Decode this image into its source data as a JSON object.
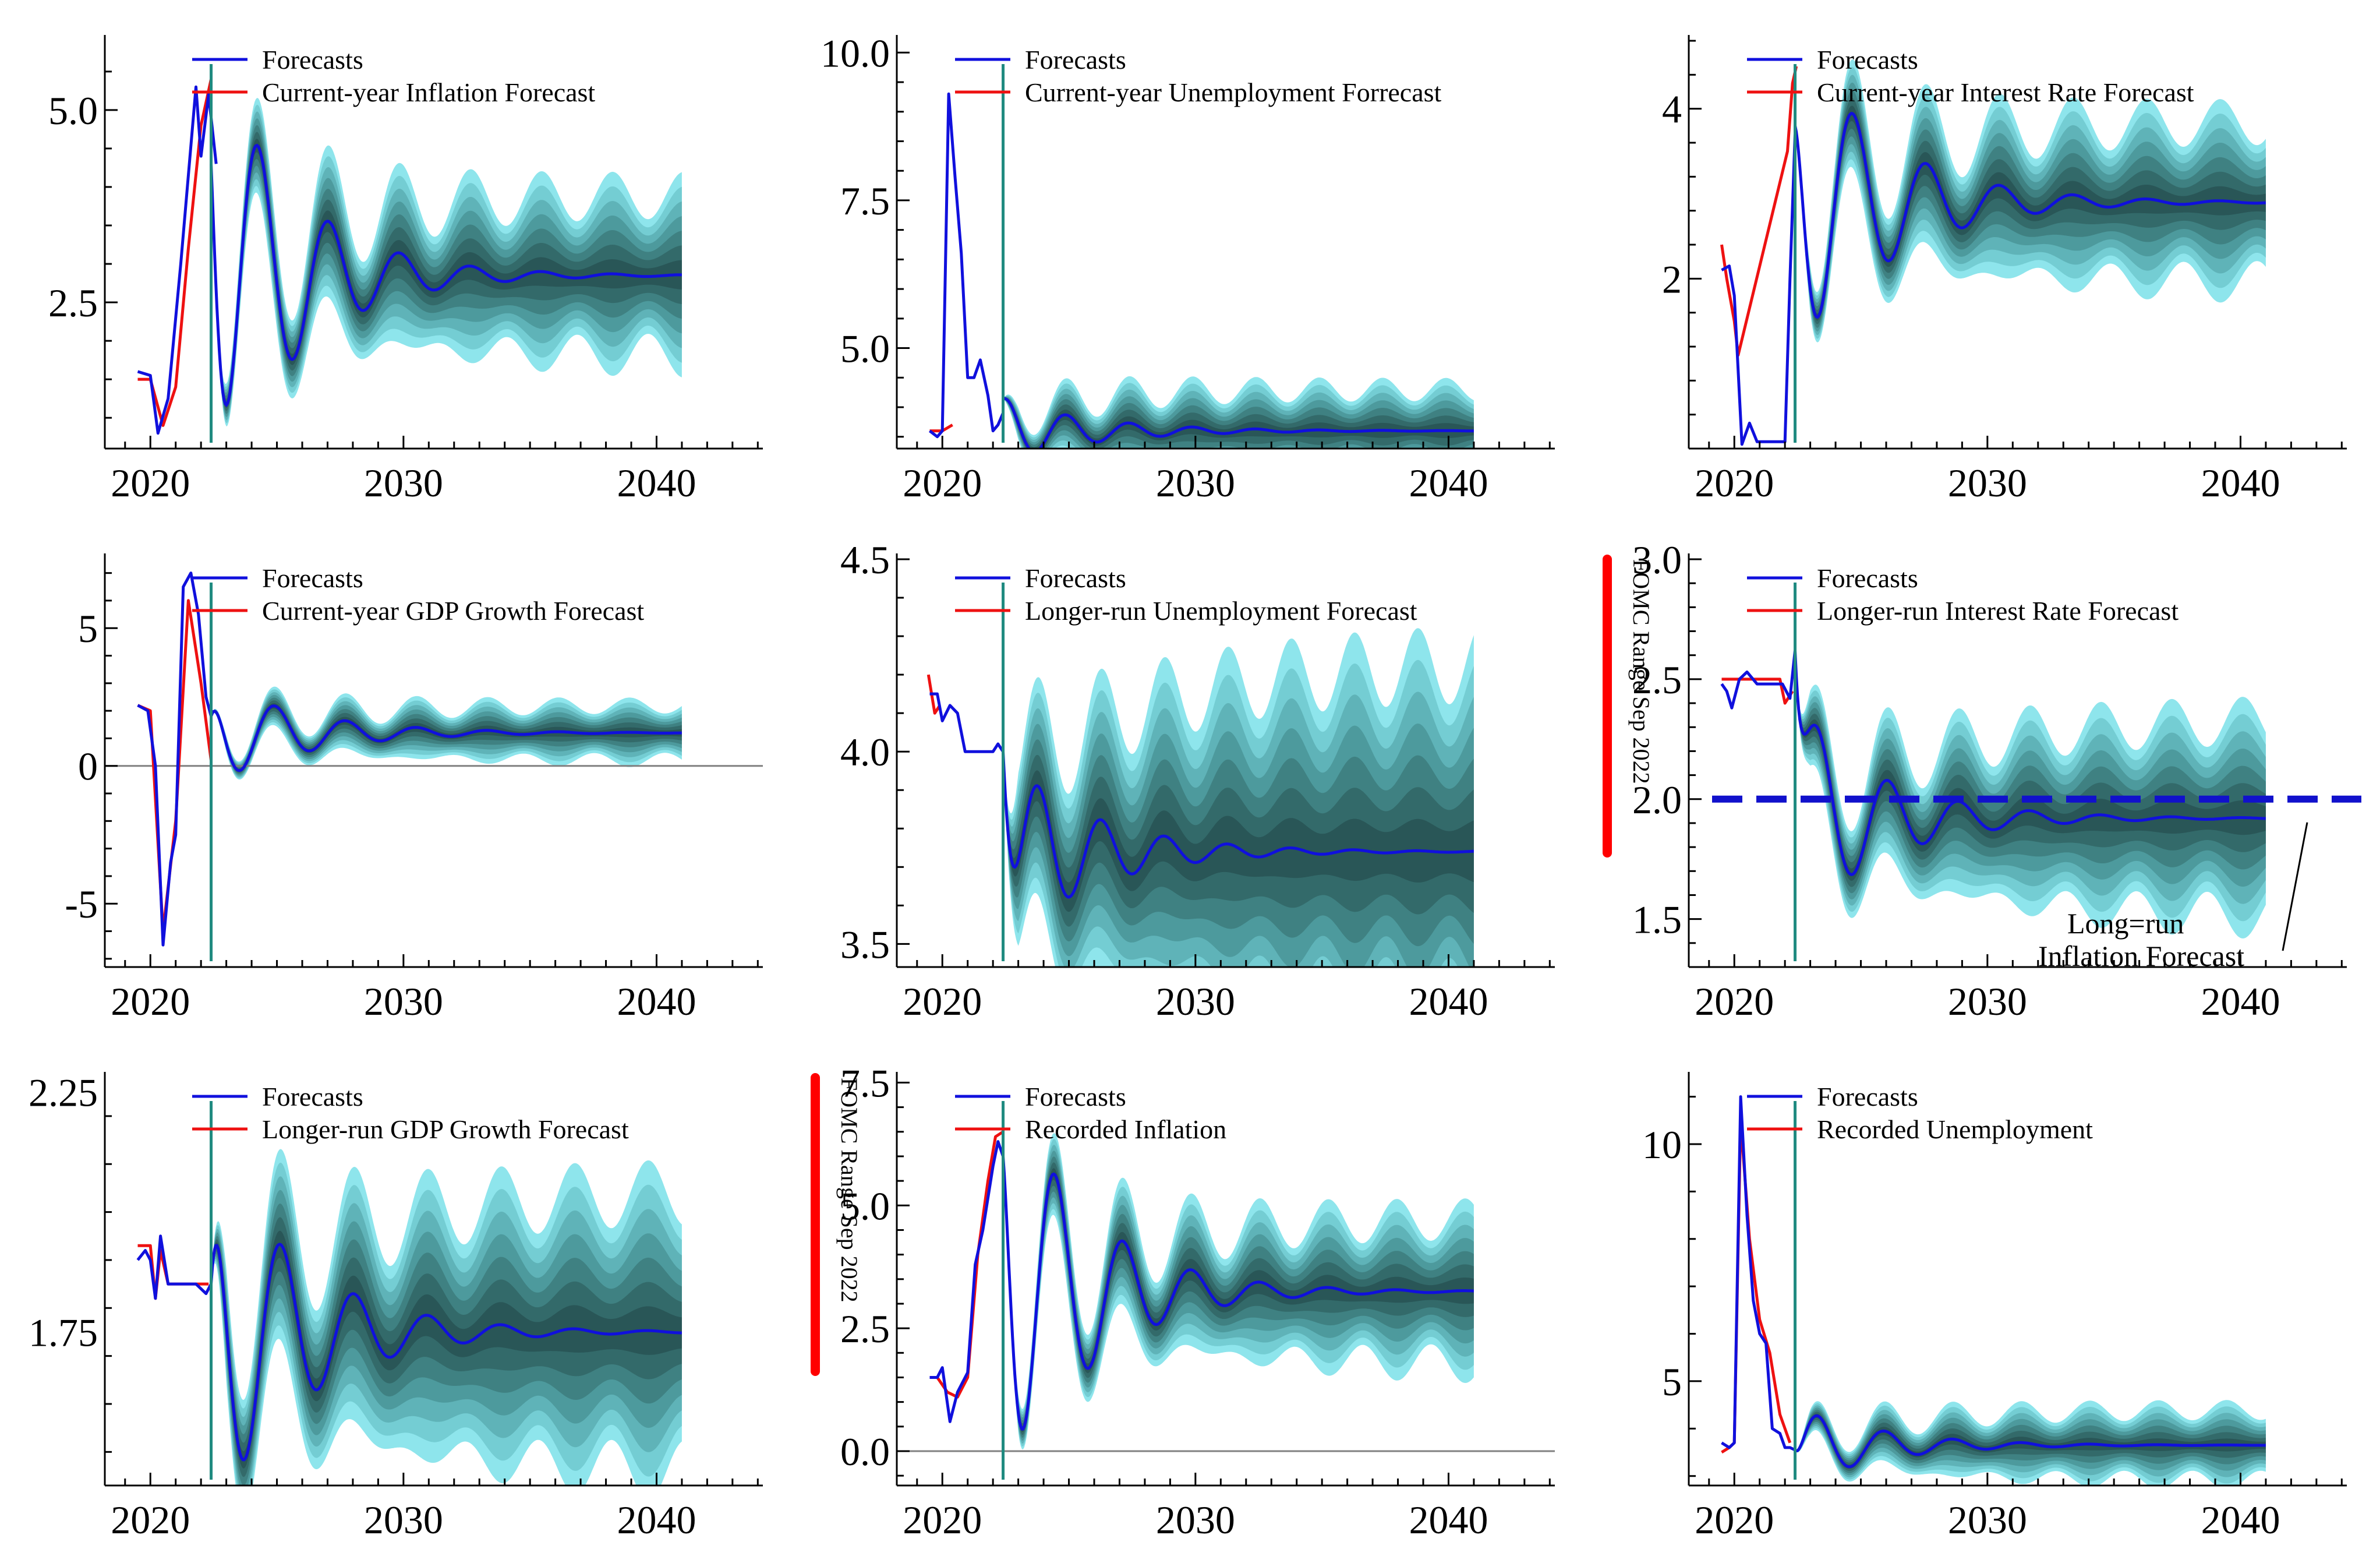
{
  "figure": {
    "x_ticks": [
      2020,
      2030,
      2040
    ],
    "x_tick_labels": [
      "2020",
      "2030",
      "2040"
    ],
    "fan_palette": [
      "#8ee5ec",
      "#74cdd3",
      "#5fb3b8",
      "#4d9a9d",
      "#3f8182",
      "#336a6a",
      "#295657"
    ],
    "colors": {
      "forecast": "#1010dd",
      "recorded": "#ee1111",
      "vline": "#1f8a80",
      "fomc": "#ff0000",
      "zero": "#808080"
    },
    "fomc_label": "FOMC Range Sep 2022"
  },
  "chart_data": [
    {
      "id": "inflation-current",
      "type": "line",
      "title": "",
      "x_range": [
        2018.2,
        2044.2
      ],
      "ylim": [
        0.6,
        5.9
      ],
      "y_ticks": [
        2.5,
        5.0
      ],
      "y_tick_labels": [
        "2.5",
        "5.0"
      ],
      "vline_x": 2022.4,
      "legend": [
        "Forecasts",
        "Current-year Inflation Forecast"
      ],
      "series": [
        {
          "name": "Forecasts",
          "x": [
            2019.5,
            2020.0,
            2020.3,
            2020.7,
            2021.2,
            2021.8,
            2022.0,
            2022.3,
            2022.6
          ],
          "values": [
            1.6,
            1.55,
            0.8,
            1.25,
            3.0,
            5.3,
            4.4,
            5.2,
            4.3
          ]
        },
        {
          "name": "Current-year Inflation Forecast",
          "x": [
            2019.5,
            2020.0,
            2020.5,
            2021.0,
            2021.5,
            2022.0,
            2022.4
          ],
          "values": [
            1.5,
            1.5,
            0.9,
            1.4,
            3.2,
            4.8,
            5.4
          ]
        }
      ],
      "forecast_path": {
        "start": 2022.4,
        "end": 2041.0,
        "start_value": 4.3,
        "mean": 2.85,
        "amplitude": 3.0,
        "period": 2.8,
        "decay": 3.2,
        "phase": 2.1,
        "band_base": 0.2,
        "band_growth": 0.85,
        "band_decay": 4.0
      }
    },
    {
      "id": "unemployment-current",
      "type": "line",
      "title": "",
      "x_range": [
        2018.2,
        2044.2
      ],
      "ylim": [
        3.3,
        10.2
      ],
      "y_ticks": [
        5.0,
        7.5,
        10.0
      ],
      "y_tick_labels": [
        "5.0",
        "7.5",
        "10.0"
      ],
      "vline_x": 2022.4,
      "legend": [
        "Forecasts",
        "Current-year Unemployment Forrecast"
      ],
      "series": [
        {
          "name": "Forecasts",
          "x": [
            2019.5,
            2019.8,
            2020.0,
            2020.25,
            2020.5,
            2020.75,
            2021.0,
            2021.25,
            2021.5,
            2021.8,
            2022.0,
            2022.2,
            2022.4
          ],
          "values": [
            3.6,
            3.5,
            3.6,
            9.3,
            7.9,
            6.6,
            4.5,
            4.5,
            4.8,
            4.2,
            3.6,
            3.7,
            3.9
          ]
        },
        {
          "name": "Current-year Unemployment Forrecast",
          "x": [
            2019.5,
            2020.0,
            2020.4
          ],
          "values": [
            3.6,
            3.6,
            3.7
          ]
        }
      ],
      "forecast_path": {
        "start": 2022.4,
        "end": 2041.0,
        "start_value": 4.15,
        "mean": 3.6,
        "amplitude": 0.55,
        "period": 2.5,
        "decay": 3.5,
        "phase": 0.0,
        "band_base": 0.15,
        "band_growth": 0.55,
        "band_decay": 2.5
      }
    },
    {
      "id": "interest-current",
      "type": "line",
      "title": "",
      "x_range": [
        2018.2,
        2044.2
      ],
      "ylim": [
        0.0,
        4.8
      ],
      "y_ticks": [
        2,
        4
      ],
      "y_tick_labels": [
        "2",
        "4"
      ],
      "vline_x": 2022.4,
      "legend": [
        "Forecasts",
        "Current-year Interest Rate Forecast"
      ],
      "series": [
        {
          "name": "Forecasts",
          "x": [
            2019.5,
            2019.8,
            2020.0,
            2020.3,
            2020.6,
            2020.9,
            2021.2,
            2021.6,
            2022.0,
            2022.2,
            2022.4
          ],
          "values": [
            2.1,
            2.15,
            1.8,
            0.05,
            0.3,
            0.08,
            0.08,
            0.08,
            0.08,
            2.0,
            3.7
          ]
        },
        {
          "name": "Current-year Interest Rate Forecast",
          "x": [
            2019.5,
            2019.7,
            2020.0,
            2020.15,
            2022.1,
            2022.3,
            2022.45
          ],
          "values": [
            2.4,
            2.0,
            1.5,
            1.1,
            3.5,
            4.3,
            4.5
          ]
        }
      ],
      "forecast_path": {
        "start": 2022.4,
        "end": 2041.0,
        "start_value": 3.8,
        "mean": 2.9,
        "amplitude": 2.0,
        "period": 2.9,
        "decay": 3.5,
        "phase": 1.3,
        "band_base": 0.2,
        "band_growth": 0.75,
        "band_decay": 4.0
      }
    },
    {
      "id": "gdp-current",
      "type": "line",
      "title": "",
      "x_range": [
        2018.2,
        2044.2
      ],
      "ylim": [
        -7.3,
        7.5
      ],
      "y_ticks": [
        -5,
        0,
        5
      ],
      "y_tick_labels": [
        "-5",
        "0",
        "5"
      ],
      "vline_x": 2022.4,
      "zero_line": true,
      "legend": [
        "Forecasts",
        "Current-year GDP Growth Forecast"
      ],
      "series": [
        {
          "name": "Forecasts",
          "x": [
            2019.5,
            2019.9,
            2020.2,
            2020.5,
            2020.8,
            2021.0,
            2021.3,
            2021.6,
            2021.9,
            2022.2,
            2022.4
          ],
          "values": [
            2.2,
            2.0,
            0.0,
            -6.5,
            -3.5,
            -2.5,
            6.5,
            7.0,
            5.5,
            2.5,
            1.8
          ]
        },
        {
          "name": "Current-year GDP Growth Forecast",
          "x": [
            2019.5,
            2020.0,
            2020.5,
            2021.0,
            2021.5,
            2022.0,
            2022.4
          ],
          "values": [
            2.2,
            2.0,
            -6.0,
            -2.0,
            6.0,
            3.0,
            0.2
          ]
        }
      ],
      "forecast_path": {
        "start": 2022.4,
        "end": 2041.0,
        "start_value": 1.8,
        "mean": 1.2,
        "amplitude": 2.0,
        "period": 2.8,
        "decay": 3.5,
        "phase": 0.6,
        "band_base": 0.2,
        "band_growth": 0.8,
        "band_decay": 4.0
      }
    },
    {
      "id": "unemployment-longrun",
      "type": "line",
      "title": "",
      "x_range": [
        2018.2,
        2044.2
      ],
      "ylim": [
        3.44,
        4.5
      ],
      "y_ticks": [
        3.5,
        4.0,
        4.5
      ],
      "y_tick_labels": [
        "3.5",
        "4.0",
        "4.5"
      ],
      "vline_x": 2022.4,
      "fomc_range": true,
      "legend": [
        "Forecasts",
        "Longer-run Unemployment Forecast"
      ],
      "series": [
        {
          "name": "Forecasts",
          "x": [
            2019.5,
            2019.8,
            2020.0,
            2020.3,
            2020.6,
            2020.9,
            2021.2,
            2021.6,
            2022.0,
            2022.2,
            2022.4
          ],
          "values": [
            4.15,
            4.15,
            4.08,
            4.12,
            4.1,
            4.0,
            4.0,
            4.0,
            4.0,
            4.02,
            4.0
          ]
        },
        {
          "name": "Longer-run Unemployment Forecast",
          "x": [
            2019.45,
            2019.7,
            2019.9
          ],
          "values": [
            4.2,
            4.1,
            4.12
          ]
        }
      ],
      "forecast_path": {
        "start": 2022.4,
        "end": 2041.0,
        "start_value": 4.0,
        "mean": 3.74,
        "amplitude": 0.25,
        "period": 2.5,
        "decay": 3.5,
        "phase": 2.8,
        "band_base": 0.2,
        "band_growth": 0.3,
        "band_decay": 6.0
      }
    },
    {
      "id": "interest-longrun",
      "type": "line",
      "title": "",
      "x_range": [
        2018.2,
        2044.2
      ],
      "ylim": [
        1.3,
        3.0
      ],
      "y_ticks": [
        1.5,
        2.0,
        2.5,
        3.0
      ],
      "y_tick_labels": [
        "1.5",
        "2.0",
        "2.5",
        "3.0"
      ],
      "vline_x": 2022.4,
      "fomc_range": true,
      "reference_line": {
        "value": 2.0,
        "label_lines": [
          "Long=run",
          "Inflation Forecast"
        ]
      },
      "legend": [
        "Forecasts",
        "Longer-run Interest Rate Forecast"
      ],
      "series": [
        {
          "name": "Forecasts",
          "x": [
            2019.5,
            2019.7,
            2019.9,
            2020.2,
            2020.5,
            2020.9,
            2021.4,
            2021.9,
            2022.2,
            2022.4
          ],
          "values": [
            2.48,
            2.45,
            2.38,
            2.5,
            2.53,
            2.48,
            2.48,
            2.48,
            2.42,
            2.62
          ]
        },
        {
          "name": "Longer-run Interest Rate Forecast",
          "x": [
            2019.5,
            2021.8,
            2022.0,
            2022.3
          ],
          "values": [
            2.5,
            2.5,
            2.4,
            2.45
          ]
        }
      ],
      "forecast_path": {
        "start": 2022.4,
        "end": 2041.0,
        "start_value": 2.62,
        "mean": 1.92,
        "amplitude": 0.45,
        "period": 2.8,
        "decay": 3.5,
        "phase": 4.3,
        "band_base": 0.12,
        "band_growth": 0.3,
        "band_decay": 6.0
      }
    },
    {
      "id": "gdp-longrun",
      "type": "line",
      "title": "",
      "x_range": [
        2018.2,
        2044.2
      ],
      "ylim": [
        1.43,
        2.28
      ],
      "y_ticks": [
        1.75,
        2.25
      ],
      "y_tick_labels": [
        "1.75",
        "2.25"
      ],
      "vline_x": 2022.4,
      "fomc_range": true,
      "legend": [
        "Forecasts",
        "Longer-run GDP Growth  Forecast"
      ],
      "series": [
        {
          "name": "Forecasts",
          "x": [
            2019.5,
            2019.8,
            2020.0,
            2020.2,
            2020.4,
            2020.7,
            2021.2,
            2021.8,
            2022.2,
            2022.4
          ],
          "values": [
            1.9,
            1.92,
            1.9,
            1.82,
            1.95,
            1.85,
            1.85,
            1.85,
            1.83,
            1.85
          ]
        },
        {
          "name": "Longer-run GDP Growth  Forecast",
          "x": [
            2019.5,
            2020.0,
            2020.2,
            2020.4,
            2020.7,
            2022.3
          ],
          "values": [
            1.93,
            1.93,
            1.82,
            1.92,
            1.85,
            1.85
          ]
        }
      ],
      "forecast_path": {
        "start": 2022.4,
        "end": 2041.0,
        "start_value": 1.85,
        "mean": 1.75,
        "amplitude": 0.4,
        "period": 2.9,
        "decay": 3.5,
        "phase": 0.28,
        "band_base": 0.1,
        "band_growth": 0.2,
        "band_decay": 6.0
      }
    },
    {
      "id": "inflation-recorded",
      "type": "line",
      "title": "",
      "x_range": [
        2018.2,
        2044.2
      ],
      "ylim": [
        -0.7,
        7.6
      ],
      "y_ticks": [
        0.0,
        2.5,
        5.0,
        7.5
      ],
      "y_tick_labels": [
        "0.0",
        "2.5",
        "5.0",
        "7.5"
      ],
      "vline_x": 2022.4,
      "zero_line": true,
      "legend": [
        "Forecasts",
        "Recorded Inflation"
      ],
      "series": [
        {
          "name": "Forecasts",
          "x": [
            2019.5,
            2019.8,
            2020.0,
            2020.3,
            2020.6,
            2021.0,
            2021.3,
            2021.6,
            2022.0,
            2022.2,
            2022.4
          ],
          "values": [
            1.5,
            1.5,
            1.7,
            0.6,
            1.2,
            1.6,
            3.8,
            4.5,
            5.8,
            6.3,
            6.0
          ]
        },
        {
          "name": "Recorded Inflation",
          "x": [
            2019.5,
            2019.8,
            2020.2,
            2020.6,
            2021.0,
            2021.4,
            2021.8,
            2022.1,
            2022.4
          ],
          "values": [
            1.5,
            1.5,
            1.2,
            1.1,
            1.5,
            4.0,
            5.5,
            6.4,
            6.5
          ]
        }
      ],
      "forecast_path": {
        "start": 2022.4,
        "end": 2041.0,
        "start_value": 6.0,
        "mean": 3.25,
        "amplitude": 4.5,
        "period": 2.7,
        "decay": 3.2,
        "phase": 1.5,
        "band_base": 0.3,
        "band_growth": 1.2,
        "band_decay": 5.0
      }
    },
    {
      "id": "unemployment-recorded",
      "type": "line",
      "title": "",
      "x_range": [
        2018.2,
        2044.2
      ],
      "ylim": [
        2.8,
        11.4
      ],
      "y_ticks": [
        5,
        10
      ],
      "y_tick_labels": [
        "5",
        "10"
      ],
      "vline_x": 2022.4,
      "legend": [
        "Forecasts",
        "Recorded Unemployment"
      ],
      "series": [
        {
          "name": "Forecasts",
          "x": [
            2019.5,
            2019.8,
            2020.0,
            2020.25,
            2020.5,
            2020.75,
            2021.0,
            2021.25,
            2021.5,
            2021.8,
            2022.0,
            2022.2,
            2022.4
          ],
          "values": [
            3.7,
            3.6,
            3.7,
            11.0,
            8.5,
            6.7,
            6.0,
            5.8,
            4.0,
            3.9,
            3.6,
            3.6,
            3.55
          ]
        },
        {
          "name": "Recorded Unemployment",
          "x": [
            2019.5,
            2019.8,
            2020.0,
            2020.25,
            2020.6,
            2021.0,
            2021.4,
            2021.8,
            2022.2
          ],
          "values": [
            3.5,
            3.6,
            3.7,
            10.5,
            8.0,
            6.3,
            5.6,
            4.3,
            3.7
          ]
        }
      ],
      "forecast_path": {
        "start": 2022.4,
        "end": 2041.0,
        "start_value": 3.55,
        "mean": 3.65,
        "amplitude": 0.9,
        "period": 2.7,
        "decay": 3.2,
        "phase": 4.3,
        "band_base": 0.15,
        "band_growth": 0.6,
        "band_decay": 4.0
      }
    }
  ]
}
